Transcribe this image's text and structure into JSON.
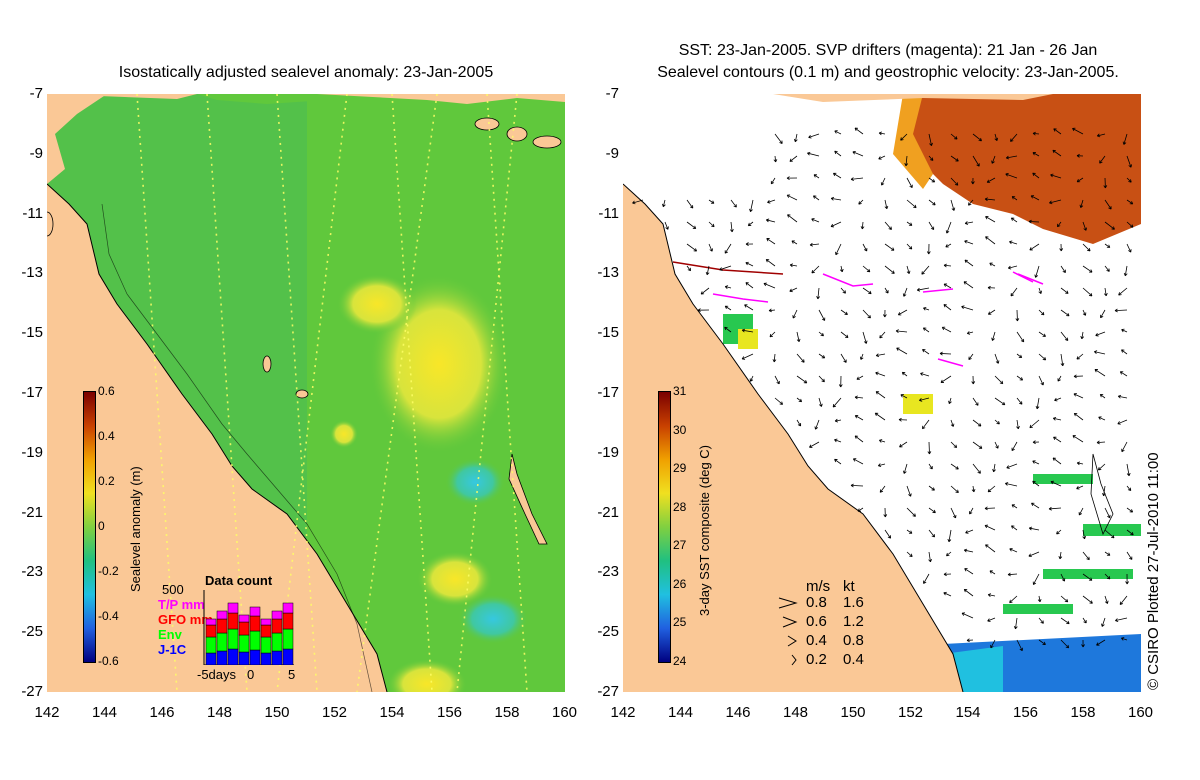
{
  "left_map": {
    "title": "Isostatically adjusted sealevel anomaly: 23-Jan-2005",
    "y_ticks": [
      "-7",
      "-9",
      "-11",
      "-13",
      "-15",
      "-17",
      "-19",
      "-21",
      "-23",
      "-25",
      "-27"
    ],
    "x_ticks": [
      "142",
      "144",
      "146",
      "148",
      "150",
      "152",
      "154",
      "156",
      "158",
      "160"
    ],
    "colorbar": {
      "label": "Sealevel anomaly (m)",
      "ticks": [
        "0.6",
        "0.4",
        "0.2",
        "0",
        "-0.2",
        "-0.4",
        "-0.6"
      ],
      "range": [
        -0.6,
        0.6
      ]
    },
    "data_count": {
      "title": "Data count",
      "max_label": "500",
      "x_labels": [
        "-5days",
        "0",
        "5"
      ],
      "series": [
        {
          "name": "T/P mm",
          "color": "#ff00ff"
        },
        {
          "name": "GFO mm",
          "color": "#ff0000"
        },
        {
          "name": "Env",
          "color": "#00ff00"
        },
        {
          "name": "J-1C",
          "color": "#0000ff"
        }
      ]
    },
    "colors": {
      "land": "#fac896",
      "ocean": "#60c83c",
      "track": "#ffff66"
    }
  },
  "right_map": {
    "title_line1": "SST: 23-Jan-2005. SVP drifters (magenta): 21 Jan - 26 Jan",
    "title_line2": "Sealevel contours (0.1 m) and geostrophic velocity: 23-Jan-2005.",
    "y_ticks": [
      "-7",
      "-9",
      "-11",
      "-13",
      "-15",
      "-17",
      "-19",
      "-21",
      "-23",
      "-25",
      "-27"
    ],
    "x_ticks": [
      "142",
      "144",
      "146",
      "148",
      "150",
      "152",
      "154",
      "156",
      "158",
      "160"
    ],
    "colorbar": {
      "label": "3-day SST composite (deg C)",
      "ticks": [
        "31",
        "30",
        "29",
        "28",
        "27",
        "26",
        "25",
        "24"
      ],
      "range": [
        24,
        31
      ]
    },
    "speed_legend": {
      "header_ms": "m/s",
      "header_kt": "kt",
      "rows": [
        {
          "ms": "0.8",
          "kt": "1.6"
        },
        {
          "ms": "0.6",
          "kt": "1.2"
        },
        {
          "ms": "0.4",
          "kt": "0.8"
        },
        {
          "ms": "0.2",
          "kt": "0.4"
        }
      ]
    },
    "colors": {
      "land": "#fac896",
      "warm": "#c85014",
      "cold": "#1e78dc",
      "drifter": "#ff00ff"
    }
  },
  "credit": "© CSIRO Plotted 27-Jul-2010 11:00"
}
